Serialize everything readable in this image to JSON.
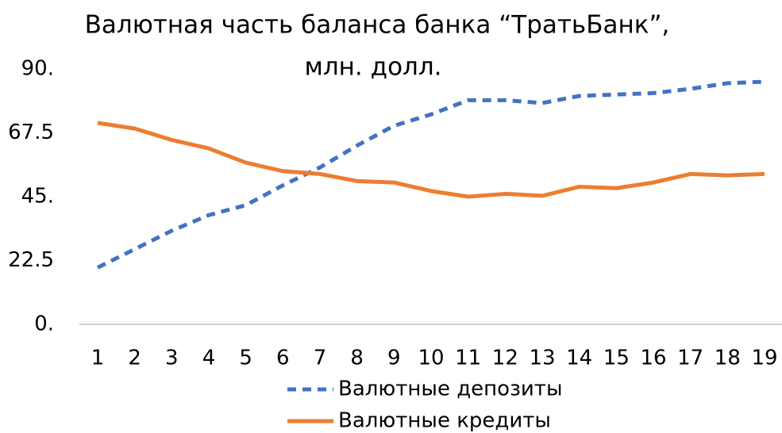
{
  "chart_data": {
    "type": "line",
    "title": [
      "Валютная часть баланса банка “ТратьБанк”,",
      "млн. долл."
    ],
    "categories": [
      "1",
      "2",
      "3",
      "4",
      "5",
      "6",
      "7",
      "8",
      "9",
      "10",
      "11",
      "12",
      "13",
      "14",
      "15",
      "16",
      "17",
      "18",
      "19"
    ],
    "series": [
      {
        "name": "Валютные депозиты",
        "color": "#4472c4",
        "dashed": true,
        "values": [
          20,
          26.5,
          33,
          38.5,
          42,
          49,
          55.3,
          63,
          70,
          74,
          79,
          79,
          78,
          80.5,
          81,
          81.5,
          83,
          85,
          85.5
        ]
      },
      {
        "name": "Валютные кредиты",
        "color": "#ed7d31",
        "dashed": false,
        "values": [
          71,
          69,
          65,
          62,
          57,
          54,
          53,
          50.5,
          50,
          47,
          45,
          46,
          45.3,
          48.5,
          48,
          50,
          53,
          52.5,
          53
        ]
      }
    ],
    "ylim": [
      0,
      90
    ],
    "yticks": [
      {
        "value": 0,
        "label": "0."
      },
      22.5,
      {
        "value": 45,
        "label": "45."
      },
      67.5,
      {
        "value": 90,
        "label": "90."
      }
    ],
    "grid": false
  }
}
